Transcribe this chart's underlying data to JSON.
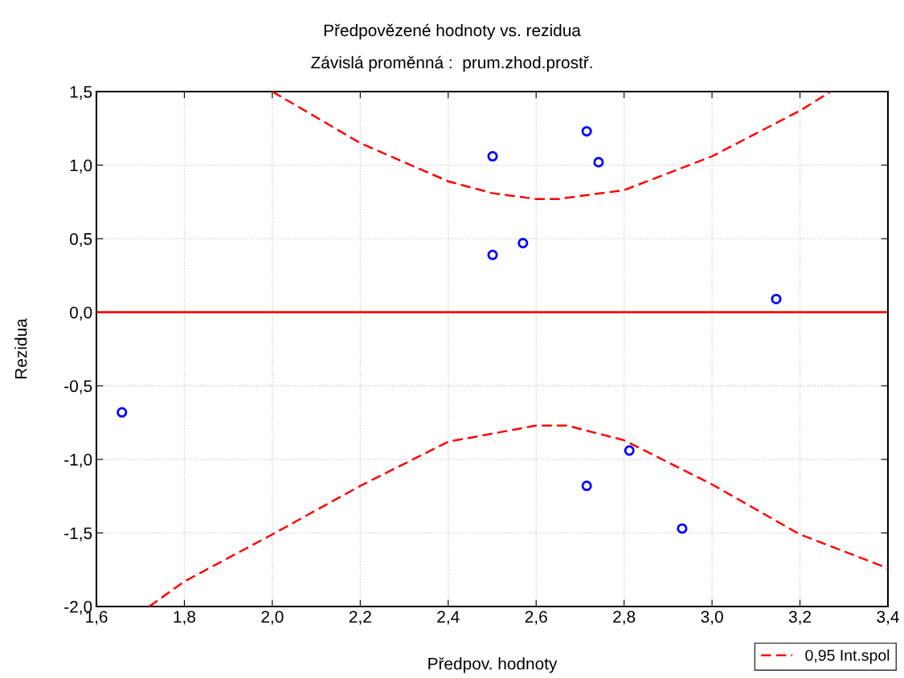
{
  "chart_data": {
    "type": "scatter",
    "title": "Předpovězené hodnoty vs. rezidua",
    "subtitle": "Závislá proměnná :  prum.zhod.prostř.",
    "xlabel": "Předpov. hodnoty",
    "ylabel": "Rezidua",
    "x": [
      1.658,
      2.501,
      2.501,
      2.57,
      2.715,
      2.742,
      3.146,
      2.715,
      2.812,
      2.932
    ],
    "xlim": [
      1.6,
      3.4
    ],
    "xticks": [
      {
        "value": 1.6,
        "label": "1,6"
      },
      {
        "value": 1.8,
        "label": "1,8"
      },
      {
        "value": 2.0,
        "label": "2,0"
      },
      {
        "value": 2.2,
        "label": "2,2"
      },
      {
        "value": 2.4,
        "label": "2,4"
      },
      {
        "value": 2.6,
        "label": "2,6"
      },
      {
        "value": 2.8,
        "label": "2,8"
      },
      {
        "value": 3.0,
        "label": "3,0"
      },
      {
        "value": 3.2,
        "label": "3,2"
      },
      {
        "value": 3.4,
        "label": "3,4"
      }
    ],
    "ylim": [
      -2.0,
      1.5
    ],
    "yticks": [
      {
        "value": -2.0,
        "label": "-2,0"
      },
      {
        "value": -1.5,
        "label": "-1,5"
      },
      {
        "value": -1.0,
        "label": "-1,0"
      },
      {
        "value": -0.5,
        "label": "-0,5"
      },
      {
        "value": 0.0,
        "label": "0,0"
      },
      {
        "value": 0.5,
        "label": "0,5"
      },
      {
        "value": 1.0,
        "label": "1,0"
      },
      {
        "value": 1.5,
        "label": "1,5"
      }
    ],
    "series": [
      {
        "color": "#0000ff",
        "marker": "circle",
        "values": [
          -0.68,
          1.06,
          0.39,
          0.47,
          1.23,
          1.02,
          0.09,
          -1.18,
          -0.94,
          -1.47
        ]
      },
      {
        "type": "line",
        "name": "0,95 Int.spol",
        "color": "#ff0000",
        "line_style": "dashed",
        "x": [
          2.0,
          2.2,
          2.4,
          2.5,
          2.6,
          2.65,
          2.8,
          3.0,
          3.2,
          3.27
        ],
        "values": [
          1.5,
          1.15,
          0.89,
          0.81,
          0.77,
          0.77,
          0.83,
          1.06,
          1.37,
          1.5
        ]
      },
      {
        "type": "line",
        "color": "#ff0000",
        "line_style": "dashed",
        "x": [
          1.72,
          1.8,
          2.0,
          2.2,
          2.4,
          2.6,
          2.67,
          2.8,
          3.0,
          3.2,
          3.4
        ],
        "values": [
          -2.0,
          -1.83,
          -1.51,
          -1.18,
          -0.88,
          -0.77,
          -0.77,
          -0.87,
          -1.17,
          -1.51,
          -1.74
        ]
      }
    ],
    "ref_lines": [
      {
        "axis": "y",
        "value": 0.0,
        "color": "#ff0000",
        "line_style": "solid"
      }
    ],
    "grid": true,
    "legend": "bottom right"
  }
}
